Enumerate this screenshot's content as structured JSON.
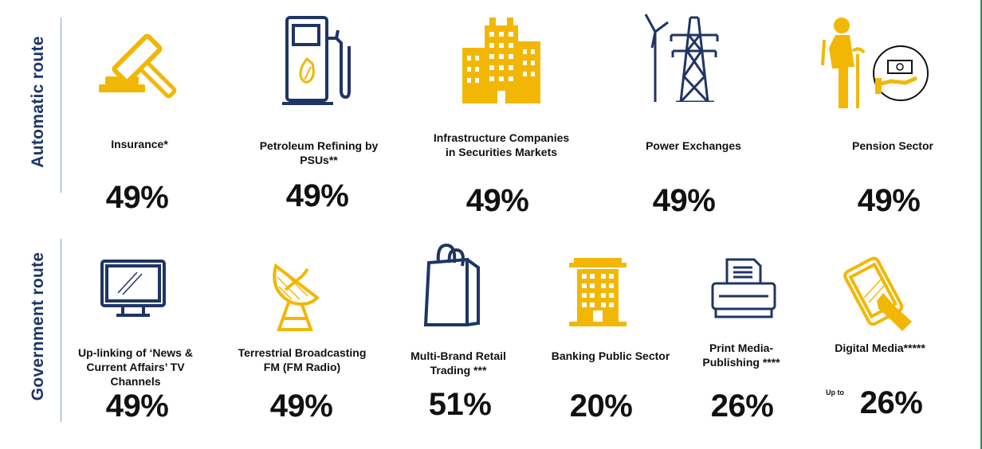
{
  "routes": {
    "automatic": {
      "title": "Automatic route",
      "items": [
        {
          "label": "Insurance*",
          "value": "49%",
          "icon": "gavel-icon"
        },
        {
          "label": "Petroleum Refining by PSUs**",
          "value": "49%",
          "icon": "fuel-pump-icon"
        },
        {
          "label": "Infrastructure Companies in Securities Markets",
          "value": "49%",
          "icon": "building-icon"
        },
        {
          "label": "Power Exchanges",
          "value": "49%",
          "icon": "power-tower-icon"
        },
        {
          "label": "Pension Sector",
          "value": "49%",
          "icon": "pension-icon"
        }
      ]
    },
    "government": {
      "title": "Government route",
      "items": [
        {
          "label": "Up-linking of ‘News & Current Affairs’ TV Channels",
          "value": "49%",
          "icon": "tv-monitor-icon"
        },
        {
          "label": "Terrestrial Broadcasting FM (FM Radio)",
          "value": "49%",
          "icon": "satellite-dish-icon"
        },
        {
          "label": "Multi-Brand Retail Trading ***",
          "value": "51%",
          "icon": "shopping-bag-icon"
        },
        {
          "label": "Banking Public Sector",
          "value": "20%",
          "icon": "bank-building-icon"
        },
        {
          "label": "Print Media-Publishing ****",
          "value": "26%",
          "icon": "printer-icon"
        },
        {
          "label": "Digital Media*****",
          "value": "26%",
          "prefix": "Up to",
          "icon": "tablet-hand-icon"
        }
      ]
    }
  },
  "colors": {
    "navy": "#1f3566",
    "gold": "#f2b705",
    "text": "#111111"
  }
}
